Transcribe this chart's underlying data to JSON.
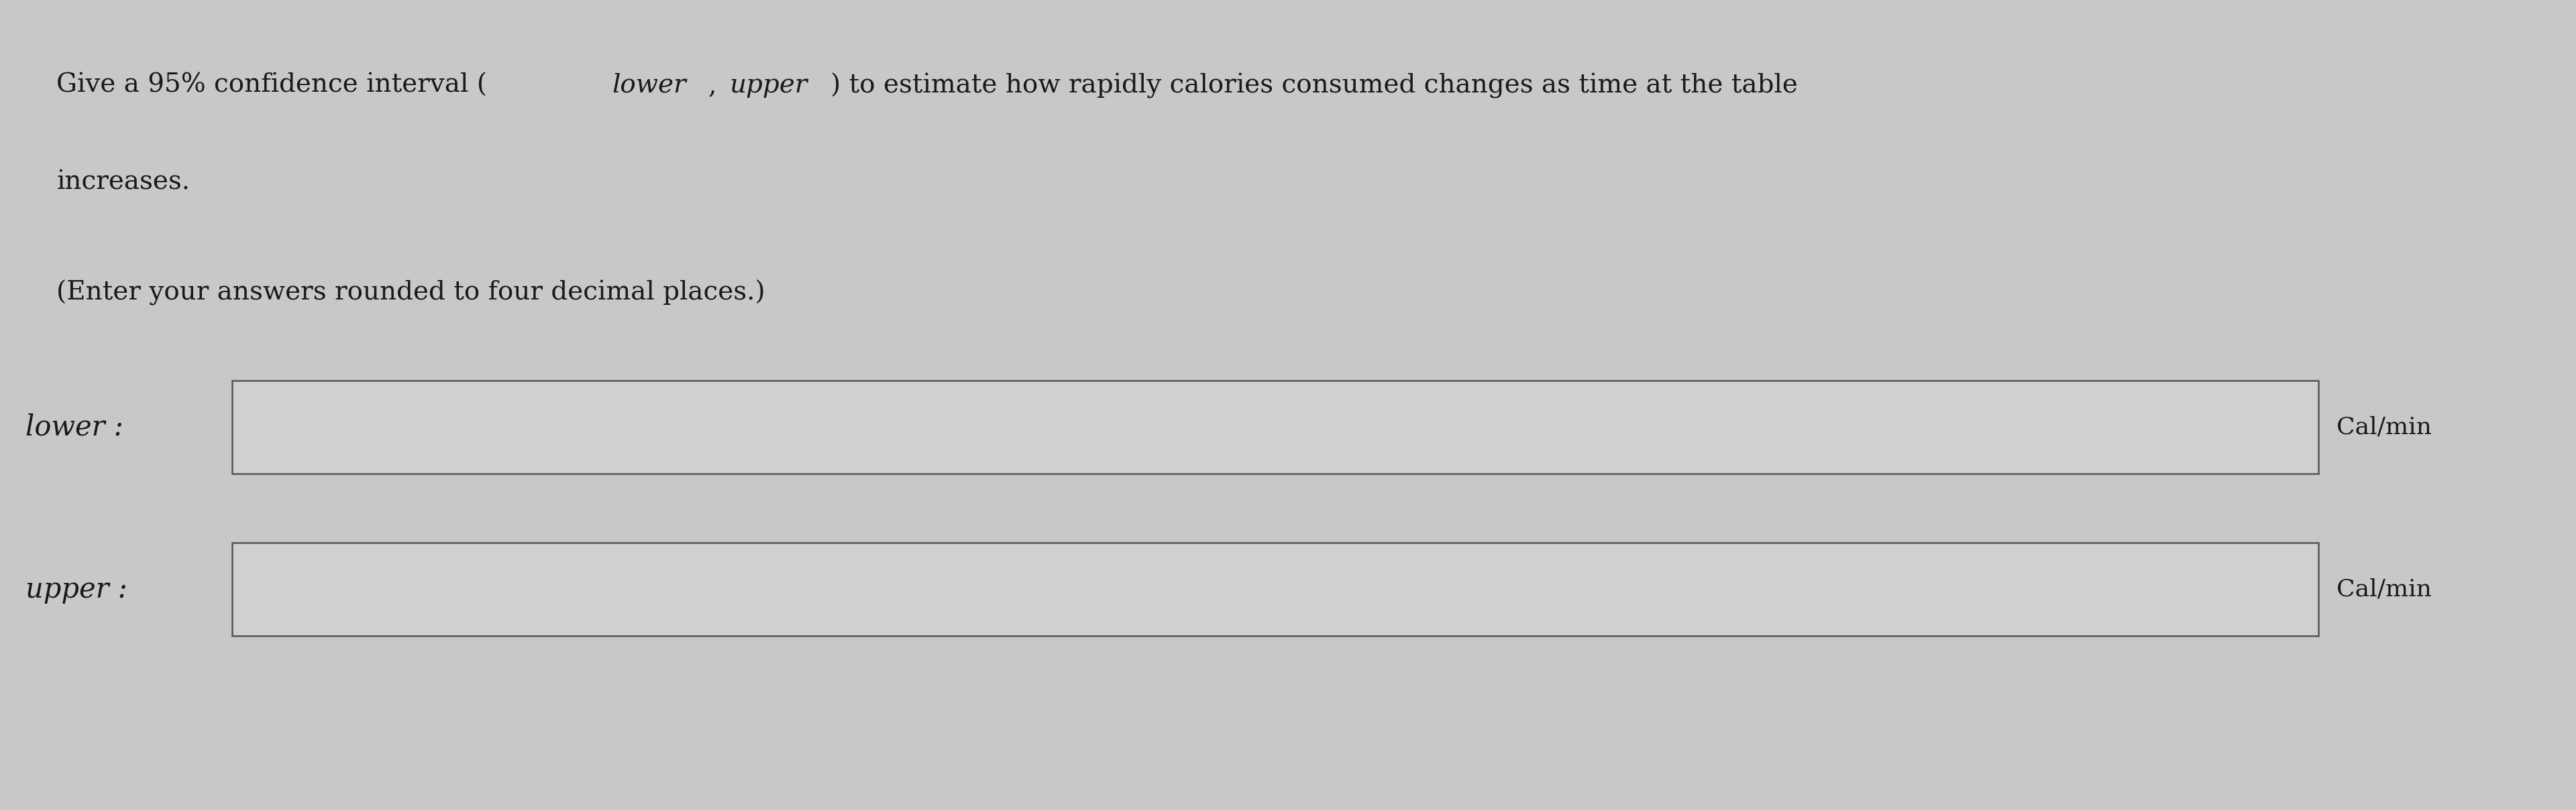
{
  "background_color": "#c8c8c8",
  "line1_part1": "Give a 95% confidence interval (",
  "line1_italic1": "lower",
  "line1_part2": ", ",
  "line1_italic2": "upper",
  "line1_part3": ") to estimate how rapidly calories consumed changes as time at the table",
  "line2": "increases.",
  "subtitle": "(Enter your answers rounded to four decimal places.)",
  "lower_label": "lower :",
  "upper_label": "upper :",
  "unit_label": "Cal/min",
  "box_facecolor": "#d0d0d0",
  "box_edgecolor": "#555555",
  "text_color": "#1a1a1a",
  "font_size_main": 28,
  "font_size_label": 30,
  "font_size_unit": 26
}
